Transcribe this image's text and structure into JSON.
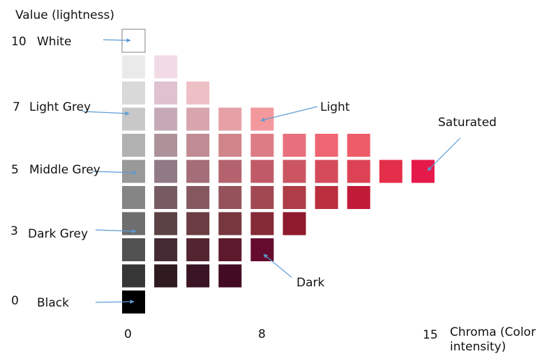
{
  "value_axis": {
    "title": "Value (lightness)",
    "marks": [
      {
        "number": "10",
        "label": "White"
      },
      {
        "number": "7",
        "label": "Light Grey"
      },
      {
        "number": "5",
        "label": "Middle Grey"
      },
      {
        "number": "3",
        "label": "Dark Grey"
      },
      {
        "number": "0",
        "label": "Black"
      }
    ]
  },
  "chroma_axis": {
    "ticks": [
      "0",
      "8",
      "15"
    ],
    "title_line1": "Chroma (Color",
    "title_line2": "intensity)"
  },
  "callouts": {
    "light": "Light",
    "saturated": "Saturated",
    "dark": "Dark"
  },
  "colors": {
    "arrow": "#5b9bd5",
    "white_swatch_border": "#7f7f7f"
  },
  "swatch_grid": {
    "value_levels": [
      10,
      9,
      8,
      7,
      6,
      5,
      4,
      3,
      2,
      1,
      0
    ],
    "rows": [
      [
        "#ffffff"
      ],
      [
        "#eaeaea",
        "#f3dbe6"
      ],
      [
        "#d9d9d9",
        "#dfc1cf",
        "#efbfc6"
      ],
      [
        "#c8c8c8",
        "#c5a9b6",
        "#d8a5ae",
        "#e6a1a6",
        "#f3989d"
      ],
      [
        "#b1b1b1",
        "#ae9299",
        "#c08b92",
        "#d0858b",
        "#dd7c84",
        "#e8707c",
        "#f06572",
        "#ef5c69"
      ],
      [
        "#999999",
        "#917985",
        "#a46d77",
        "#b4636e",
        "#c05a66",
        "#cb5662",
        "#d54b5b",
        "#dc4254",
        "#e42f4a",
        "#e5194a"
      ],
      [
        "#858585",
        "#765b62",
        "#855860",
        "#95525a",
        "#a24852",
        "#ae3d47",
        "#ba2e3d",
        "#c11a38"
      ],
      [
        "#6e6e6e",
        "#5a4245",
        "#6b3d42",
        "#76373e",
        "#852a37",
        "#8f1a2e"
      ],
      [
        "#525252",
        "#442b33",
        "#532530",
        "#5d1a2c",
        "#650c2e"
      ],
      [
        "#363636",
        "#2f1a1f",
        "#3a1423",
        "#440b24"
      ],
      [
        "#000000"
      ]
    ]
  }
}
